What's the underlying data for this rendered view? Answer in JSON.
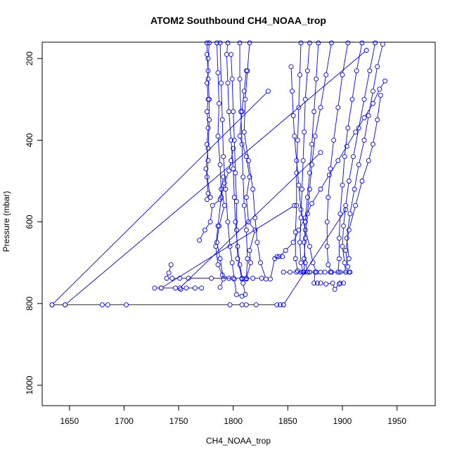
{
  "chart_data": {
    "type": "scatter",
    "title": "ATOM2 Southbound CH4_NOAA_trop",
    "xlabel": "CH4_NOAA_trop",
    "ylabel": "Pressure (mbar)",
    "xlim": [
      1625,
      1985
    ],
    "ylim": [
      1050,
      160
    ],
    "y_reversed": true,
    "x_ticks": [
      1650,
      1700,
      1750,
      1800,
      1850,
      1900,
      1950
    ],
    "y_ticks": [
      200,
      400,
      600,
      800,
      1000
    ],
    "grid": false,
    "style": "points connected by lines (type b)",
    "color": "#0000ff",
    "series": [
      {
        "points": [
          [
            1776,
            160
          ],
          [
            1776,
            190
          ],
          [
            1777,
            230
          ],
          [
            1776,
            260
          ],
          [
            1777,
            300
          ],
          [
            1776,
            330
          ],
          [
            1777,
            370
          ],
          [
            1776,
            410
          ],
          [
            1777,
            450
          ],
          [
            1776,
            490
          ],
          [
            1777,
            530
          ],
          [
            1776,
            545
          ],
          [
            1779,
            540
          ],
          [
            1775,
            470
          ],
          [
            1777,
            420
          ],
          [
            1778,
            350
          ],
          [
            1778,
            300
          ],
          [
            1777,
            250
          ],
          [
            1777,
            200
          ],
          [
            1778,
            160
          ]
        ]
      },
      {
        "points": [
          [
            1788,
            160
          ],
          [
            1789,
            260
          ],
          [
            1790,
            350
          ],
          [
            1791,
            440
          ],
          [
            1793,
            520
          ],
          [
            1795,
            600
          ],
          [
            1797,
            660
          ],
          [
            1799,
            700
          ],
          [
            1801,
            740
          ],
          [
            1803,
            778
          ],
          [
            1808,
            782
          ],
          [
            1811,
            778
          ],
          [
            1809,
            750
          ],
          [
            1806,
            705
          ],
          [
            1804,
            660
          ],
          [
            1802,
            600
          ],
          [
            1801,
            540
          ],
          [
            1800,
            470
          ],
          [
            1798,
            400
          ],
          [
            1796,
            330
          ],
          [
            1795,
            260
          ],
          [
            1794,
            190
          ],
          [
            1795,
            160
          ]
        ]
      },
      {
        "points": [
          [
            1806,
            160
          ],
          [
            1806,
            250
          ],
          [
            1807,
            330
          ],
          [
            1808,
            410
          ],
          [
            1809,
            490
          ],
          [
            1810,
            560
          ],
          [
            1812,
            620
          ],
          [
            1813,
            690
          ],
          [
            1812,
            740
          ],
          [
            1808,
            740
          ],
          [
            1804,
            690
          ],
          [
            1803,
            620
          ],
          [
            1803,
            550
          ],
          [
            1802,
            480
          ],
          [
            1801,
            400
          ],
          [
            1800,
            330
          ],
          [
            1799,
            250
          ],
          [
            1798,
            190
          ]
        ]
      },
      {
        "points": [
          [
            1815,
            160
          ],
          [
            1813,
            230
          ],
          [
            1811,
            300
          ],
          [
            1810,
            380
          ],
          [
            1814,
            450
          ],
          [
            1818,
            520
          ],
          [
            1820,
            590
          ],
          [
            1822,
            650
          ],
          [
            1825,
            700
          ],
          [
            1830,
            740
          ],
          [
            1834,
            740
          ],
          [
            1838,
            690
          ],
          [
            1840,
            685
          ],
          [
            1845,
            685
          ]
        ]
      },
      {
        "points": [
          [
            1785,
            160
          ],
          [
            1786,
            235
          ],
          [
            1787,
            310
          ],
          [
            1786,
            390
          ],
          [
            1788,
            460
          ],
          [
            1789,
            540
          ],
          [
            1786,
            610
          ],
          [
            1784,
            660
          ],
          [
            1786,
            705
          ],
          [
            1790,
            730
          ],
          [
            1796,
            738
          ]
        ]
      },
      {
        "points": [
          [
            1791,
            490
          ],
          [
            1789,
            520
          ],
          [
            1792,
            560
          ],
          [
            1787,
            610
          ],
          [
            1785,
            650
          ],
          [
            1788,
            690
          ],
          [
            1791,
            740
          ],
          [
            1788,
            760
          ]
        ]
      },
      {
        "points": [
          [
            1812,
            230
          ],
          [
            1810,
            280
          ],
          [
            1808,
            330
          ],
          [
            1806,
            390
          ],
          [
            1812,
            440
          ],
          [
            1815,
            490
          ],
          [
            1812,
            540
          ],
          [
            1814,
            600
          ],
          [
            1820,
            620
          ],
          [
            1815,
            670
          ],
          [
            1816,
            700
          ],
          [
            1812,
            738
          ]
        ]
      },
      {
        "points": [
          [
            1769,
            645
          ],
          [
            1774,
            620
          ],
          [
            1779,
            600
          ],
          [
            1781,
            560
          ],
          [
            1788,
            545
          ],
          [
            1792,
            505
          ],
          [
            1796,
            475
          ],
          [
            1798,
            450
          ],
          [
            1800,
            420
          ]
        ]
      },
      {
        "points": [
          [
            1743,
            705
          ],
          [
            1741,
            725
          ],
          [
            1739,
            738
          ],
          [
            1744,
            738
          ],
          [
            1751,
            738
          ],
          [
            1759,
            738
          ],
          [
            1780,
            738
          ],
          [
            1800,
            738
          ],
          [
            1808,
            738
          ],
          [
            1818,
            738
          ],
          [
            1826,
            738
          ]
        ]
      },
      {
        "points": [
          [
            1728,
            762
          ],
          [
            1734,
            762
          ],
          [
            1747,
            762
          ],
          [
            1752,
            765
          ],
          [
            1757,
            762
          ],
          [
            1765,
            762
          ],
          [
            1771,
            762
          ]
        ]
      },
      {
        "points": [
          [
            1634,
            803
          ],
          [
            1646,
            803
          ],
          [
            1680,
            803
          ],
          [
            1685,
            803
          ],
          [
            1702,
            803
          ],
          [
            1797,
            803
          ],
          [
            1808,
            803
          ],
          [
            1812,
            803
          ],
          [
            1821,
            803
          ],
          [
            1840,
            803
          ],
          [
            1843,
            803
          ],
          [
            1846,
            803
          ]
        ]
      },
      {
        "points": [
          [
            1634,
            803
          ],
          [
            1832,
            280
          ]
        ]
      },
      {
        "points": [
          [
            1646,
            803
          ],
          [
            1922,
            180
          ]
        ]
      },
      {
        "points": [
          [
            1734,
            762
          ],
          [
            1856,
            560
          ]
        ]
      },
      {
        "points": [
          [
            1751,
            762
          ],
          [
            1880,
            430
          ]
        ]
      },
      {
        "points": [
          [
            1846,
            803
          ],
          [
            1903,
            570
          ]
        ]
      },
      {
        "points": [
          [
            1862,
            160
          ],
          [
            1861,
            240
          ],
          [
            1860,
            320
          ],
          [
            1859,
            400
          ],
          [
            1858,
            480
          ],
          [
            1858,
            560
          ],
          [
            1857,
            625
          ],
          [
            1857,
            690
          ],
          [
            1859,
            720
          ],
          [
            1862,
            723
          ],
          [
            1868,
            723
          ]
        ]
      },
      {
        "points": [
          [
            1870,
            160
          ],
          [
            1868,
            230
          ],
          [
            1866,
            300
          ],
          [
            1865,
            380
          ],
          [
            1864,
            450
          ],
          [
            1863,
            520
          ],
          [
            1862,
            590
          ],
          [
            1861,
            650
          ],
          [
            1862,
            700
          ],
          [
            1864,
            723
          ],
          [
            1870,
            723
          ],
          [
            1876,
            723
          ]
        ]
      },
      {
        "points": [
          [
            1853,
            220
          ],
          [
            1854,
            280
          ],
          [
            1855,
            340
          ],
          [
            1856,
            390
          ],
          [
            1858,
            450
          ],
          [
            1860,
            510
          ],
          [
            1862,
            570
          ],
          [
            1866,
            620
          ],
          [
            1870,
            660
          ],
          [
            1873,
            700
          ],
          [
            1876,
            723
          ]
        ]
      },
      {
        "points": [
          [
            1878,
            160
          ],
          [
            1876,
            250
          ],
          [
            1874,
            330
          ],
          [
            1872,
            410
          ],
          [
            1870,
            480
          ],
          [
            1868,
            540
          ],
          [
            1866,
            600
          ],
          [
            1865,
            650
          ],
          [
            1866,
            700
          ],
          [
            1868,
            723
          ]
        ]
      },
      {
        "points": [
          [
            1890,
            160
          ],
          [
            1885,
            240
          ],
          [
            1880,
            320
          ],
          [
            1875,
            390
          ],
          [
            1872,
            460
          ],
          [
            1870,
            520
          ],
          [
            1868,
            580
          ],
          [
            1866,
            640
          ],
          [
            1865,
            690
          ],
          [
            1865,
            723
          ]
        ]
      },
      {
        "points": [
          [
            1905,
            160
          ],
          [
            1900,
            240
          ],
          [
            1896,
            320
          ],
          [
            1892,
            400
          ],
          [
            1889,
            470
          ],
          [
            1887,
            540
          ],
          [
            1886,
            600
          ],
          [
            1886,
            660
          ],
          [
            1887,
            705
          ],
          [
            1890,
            723
          ],
          [
            1898,
            723
          ],
          [
            1906,
            723
          ]
        ]
      },
      {
        "points": [
          [
            1918,
            160
          ],
          [
            1913,
            230
          ],
          [
            1909,
            300
          ],
          [
            1905,
            370
          ],
          [
            1902,
            440
          ],
          [
            1900,
            510
          ],
          [
            1898,
            580
          ],
          [
            1897,
            640
          ],
          [
            1897,
            690
          ],
          [
            1896,
            723
          ],
          [
            1889,
            723
          ]
        ]
      },
      {
        "points": [
          [
            1930,
            160
          ],
          [
            1925,
            230
          ],
          [
            1920,
            300
          ],
          [
            1915,
            370
          ],
          [
            1910,
            440
          ],
          [
            1906,
            500
          ],
          [
            1903,
            560
          ],
          [
            1901,
            610
          ],
          [
            1900,
            660
          ],
          [
            1902,
            700
          ],
          [
            1903,
            723
          ]
        ]
      },
      {
        "points": [
          [
            1937,
            165
          ],
          [
            1932,
            220
          ],
          [
            1928,
            280
          ],
          [
            1924,
            340
          ],
          [
            1920,
            400
          ],
          [
            1915,
            460
          ],
          [
            1911,
            520
          ],
          [
            1907,
            580
          ],
          [
            1904,
            640
          ],
          [
            1906,
            690
          ]
        ]
      },
      {
        "points": [
          [
            1935,
            290
          ],
          [
            1932,
            350
          ],
          [
            1928,
            410
          ],
          [
            1924,
            450
          ],
          [
            1918,
            500
          ],
          [
            1912,
            560
          ],
          [
            1906,
            620
          ],
          [
            1903,
            670
          ],
          [
            1905,
            710
          ]
        ]
      },
      {
        "points": [
          [
            1875,
            723
          ],
          [
            1874,
            750
          ],
          [
            1877,
            750
          ],
          [
            1880,
            750
          ],
          [
            1885,
            752
          ],
          [
            1891,
            750
          ],
          [
            1893,
            765
          ],
          [
            1897,
            752
          ],
          [
            1898,
            750
          ],
          [
            1901,
            750
          ]
        ]
      },
      {
        "points": [
          [
            1842,
            685
          ],
          [
            1848,
            670
          ],
          [
            1855,
            650
          ],
          [
            1860,
            620
          ],
          [
            1866,
            590
          ],
          [
            1872,
            555
          ],
          [
            1880,
            520
          ],
          [
            1888,
            485
          ],
          [
            1896,
            450
          ],
          [
            1904,
            415
          ],
          [
            1912,
            380
          ],
          [
            1920,
            345
          ],
          [
            1928,
            310
          ],
          [
            1934,
            275
          ],
          [
            1939,
            255
          ]
        ]
      },
      {
        "points": [
          [
            1846,
            723
          ],
          [
            1852,
            723
          ],
          [
            1858,
            723
          ],
          [
            1864,
            723
          ],
          [
            1870,
            723
          ]
        ]
      },
      {
        "points": [
          [
            1880,
            723
          ],
          [
            1884,
            723
          ],
          [
            1890,
            723
          ],
          [
            1896,
            723
          ],
          [
            1903,
            723
          ],
          [
            1907,
            723
          ]
        ]
      }
    ]
  }
}
